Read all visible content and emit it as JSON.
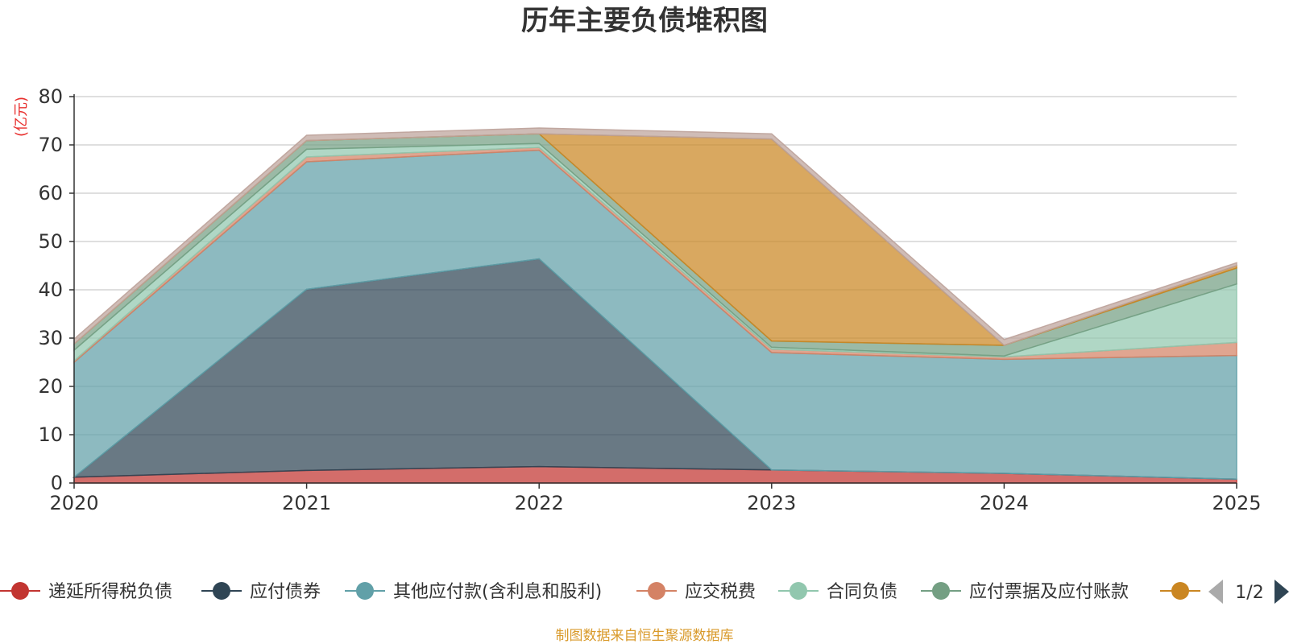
{
  "chart_data": {
    "type": "area",
    "stacked": true,
    "title": "历年主要负债堆积图",
    "unit_label": "(亿元)",
    "x": [
      "2020",
      "2021",
      "2022",
      "2023",
      "2024",
      "2025"
    ],
    "ylim": [
      0,
      80
    ],
    "yticks": [
      0,
      10,
      20,
      30,
      40,
      50,
      60,
      70,
      80
    ],
    "grid": true,
    "series": [
      {
        "name": "递延所得税负债",
        "color": "#c23531",
        "values": [
          1.2,
          2.6,
          3.4,
          2.7,
          2.0,
          0.8
        ]
      },
      {
        "name": "应付债券",
        "color": "#2f4554",
        "values": [
          0.0,
          37.5,
          43.0,
          0.0,
          0.0,
          0.0
        ]
      },
      {
        "name": "其他应付款(含利息和股利)",
        "color": "#61a0a8",
        "values": [
          23.8,
          26.4,
          22.5,
          24.3,
          23.6,
          25.6
        ]
      },
      {
        "name": "应交税费",
        "color": "#d48265",
        "values": [
          0.3,
          1.0,
          0.6,
          0.7,
          0.5,
          2.7
        ]
      },
      {
        "name": "合同负债",
        "color": "#91c7ae",
        "values": [
          2.2,
          1.6,
          0.8,
          0.4,
          0.2,
          12.1
        ]
      },
      {
        "name": "应付票据及应付账款",
        "color": "#749f83",
        "values": [
          1.3,
          1.8,
          2.0,
          1.3,
          2.2,
          3.3
        ]
      },
      {
        "name": "",
        "color": "#ca8622",
        "values": [
          0.0,
          0.0,
          0.0,
          41.8,
          0.0,
          0.5
        ]
      },
      {
        "name": "",
        "color": "#bda29a",
        "values": [
          1.0,
          1.1,
          1.2,
          1.1,
          1.2,
          0.6
        ]
      }
    ],
    "legend": {
      "position": "bottom",
      "page": "1/2"
    },
    "source": "制图数据来自恒生聚源数据库"
  }
}
